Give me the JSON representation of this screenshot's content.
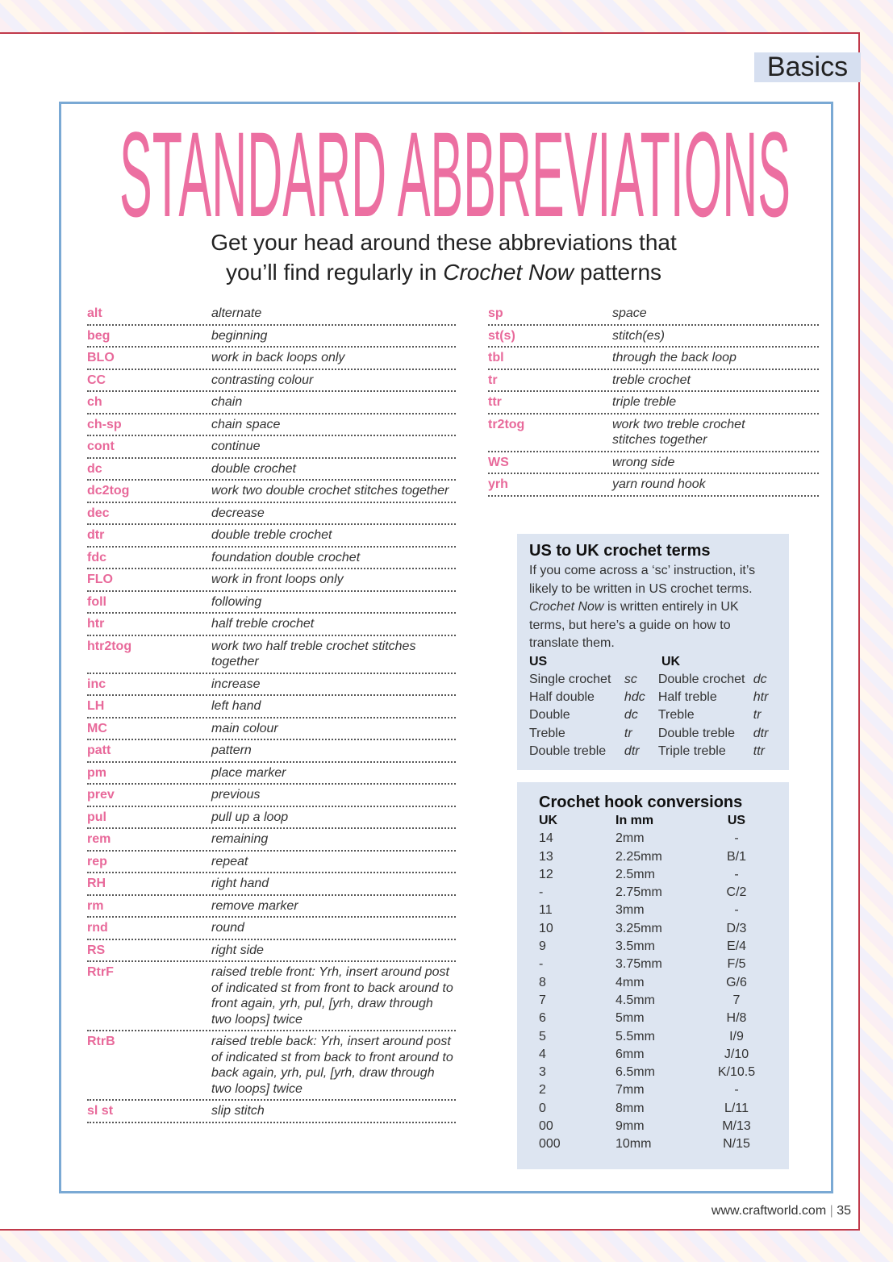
{
  "header": {
    "section": "Basics"
  },
  "title": "STANDARD ABBREVIATIONS",
  "subtitle": {
    "line1": "Get your head around these abbreviations that",
    "line2_start": "you’ll find regularly in",
    "line2_italic": "Crochet Now",
    "line2_end": "patterns"
  },
  "abbreviations": {
    "left": [
      [
        "alt",
        "alternate"
      ],
      [
        "beg",
        "beginning"
      ],
      [
        "BLO",
        "work in back loops only"
      ],
      [
        "CC",
        "contrasting colour"
      ],
      [
        "ch",
        "chain"
      ],
      [
        "ch-sp",
        "chain space"
      ],
      [
        "cont",
        "continue"
      ],
      [
        "dc",
        "double crochet"
      ],
      [
        "dc2tog",
        "work two double crochet stitches together"
      ],
      [
        "dec",
        "decrease"
      ],
      [
        "dtr",
        "double treble crochet"
      ],
      [
        "fdc",
        "foundation double crochet"
      ],
      [
        "FLO",
        "work in front loops only"
      ],
      [
        "foll",
        "following"
      ],
      [
        "htr",
        "half treble crochet"
      ],
      [
        "htr2tog",
        "work two half treble crochet stitches together"
      ],
      [
        "inc",
        "increase"
      ],
      [
        "LH",
        "left hand"
      ],
      [
        "MC",
        "main colour"
      ],
      [
        "patt",
        "pattern"
      ],
      [
        "pm",
        "place marker"
      ],
      [
        "prev",
        "previous"
      ],
      [
        "pul",
        "pull up a loop"
      ],
      [
        "rem",
        "remaining"
      ],
      [
        "rep",
        "repeat"
      ],
      [
        "RH",
        "right hand"
      ],
      [
        "rm",
        "remove marker"
      ],
      [
        "rnd",
        "round"
      ],
      [
        "RS",
        "right side"
      ],
      [
        "RtrF",
        "raised treble front: Yrh, insert around post of indicated st from front to back around to front again, yrh, pul, [yrh, draw through two loops] twice"
      ],
      [
        "RtrB",
        "raised treble back: Yrh, insert around post of indicated st from back  to front around to back again, yrh, pul, [yrh, draw through two loops] twice"
      ],
      [
        "sl st",
        "slip stitch"
      ]
    ],
    "right": [
      [
        "sp",
        "space"
      ],
      [
        "st(s)",
        "stitch(es)"
      ],
      [
        "tbl",
        "through the back loop"
      ],
      [
        "tr",
        "treble crochet"
      ],
      [
        "ttr",
        "triple treble"
      ],
      [
        "tr2tog",
        "work two treble crochet stitches together"
      ],
      [
        "WS",
        "wrong side"
      ],
      [
        "yrh",
        "yarn round hook"
      ]
    ]
  },
  "us_uk": {
    "title": "US to UK crochet terms",
    "intro_start": "If you come across a ‘sc’ instruction, it’s likely to be written in US crochet terms.",
    "intro_italic": "Crochet Now",
    "intro_end": "is written entirely in UK terms, but here’s a guide on how to translate them.",
    "headers": [
      "US",
      "UK"
    ],
    "rows": [
      [
        "Single crochet",
        "sc",
        "Double crochet",
        "dc"
      ],
      [
        "Half double",
        "hdc",
        "Half treble",
        "htr"
      ],
      [
        "Double",
        "dc",
        "Treble",
        "tr"
      ],
      [
        "Treble",
        "tr",
        "Double treble",
        "dtr"
      ],
      [
        "Double treble",
        "dtr",
        "Triple treble",
        "ttr"
      ]
    ]
  },
  "hooks": {
    "title": "Crochet hook conversions",
    "headers": [
      "UK",
      "In mm",
      "US"
    ],
    "rows": [
      [
        "14",
        "2mm",
        "-"
      ],
      [
        "13",
        "2.25mm",
        "B/1"
      ],
      [
        "12",
        "2.5mm",
        "-"
      ],
      [
        "-",
        "2.75mm",
        "C/2"
      ],
      [
        "11",
        "3mm",
        "-"
      ],
      [
        "10",
        "3.25mm",
        "D/3"
      ],
      [
        "9",
        "3.5mm",
        "E/4"
      ],
      [
        "-",
        "3.75mm",
        "F/5"
      ],
      [
        "8",
        "4mm",
        "G/6"
      ],
      [
        "7",
        "4.5mm",
        "7"
      ],
      [
        "6",
        "5mm",
        "H/8"
      ],
      [
        "5",
        "5.5mm",
        "I/9"
      ],
      [
        "4",
        "6mm",
        "J/10"
      ],
      [
        "3",
        "6.5mm",
        "K/10.5"
      ],
      [
        "2",
        "7mm",
        "-"
      ],
      [
        "0",
        "8mm",
        "L/11"
      ],
      [
        "00",
        "9mm",
        "M/13"
      ],
      [
        "000",
        "10mm",
        "N/15"
      ]
    ]
  },
  "footer": {
    "url": "www.craftworld.com",
    "page": "35"
  }
}
